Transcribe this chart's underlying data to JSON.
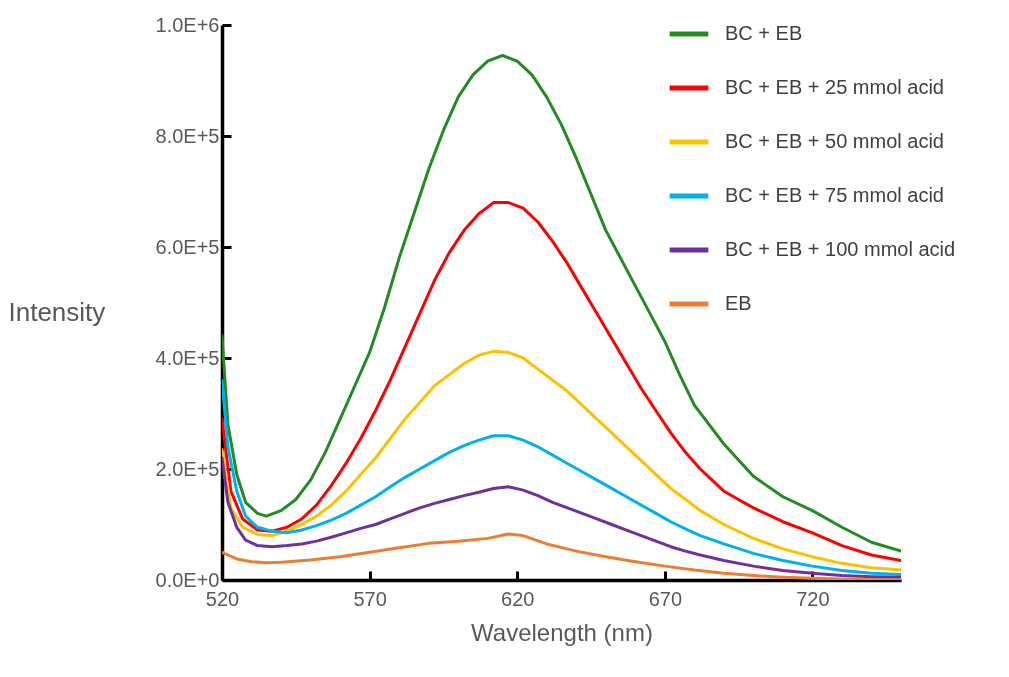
{
  "chart_data": {
    "type": "line",
    "xlabel": "Wavelength (nm)",
    "ylabel": "Intensity",
    "xlim": [
      520,
      750
    ],
    "xticks": [
      520,
      570,
      620,
      670,
      720
    ],
    "ylim": [
      0,
      1000000
    ],
    "yticks": [
      {
        "value": 0,
        "label": "0.0E+0"
      },
      {
        "value": 200000,
        "label": "2.0E+5"
      },
      {
        "value": 400000,
        "label": "4.0E+5"
      },
      {
        "value": 600000,
        "label": "6.0E+5"
      },
      {
        "value": 800000,
        "label": "8.0E+5"
      },
      {
        "value": 1000000,
        "label": "1.0E+6"
      }
    ],
    "grid": false,
    "legend": "top right",
    "series": [
      {
        "name": "BC + EB",
        "color": "#228b22",
        "x": [
          520,
          522,
          525,
          528,
          532,
          535,
          540,
          545,
          550,
          555,
          560,
          565,
          570,
          575,
          580,
          585,
          590,
          595,
          600,
          605,
          610,
          615,
          620,
          625,
          630,
          635,
          640,
          645,
          650,
          655,
          660,
          665,
          670,
          675,
          680,
          690,
          700,
          710,
          720,
          730,
          740,
          750
        ],
        "values": [
          440000,
          280000,
          190000,
          140000,
          120000,
          115000,
          125000,
          145000,
          180000,
          230000,
          290000,
          350000,
          410000,
          490000,
          580000,
          660000,
          740000,
          810000,
          870000,
          910000,
          935000,
          945000,
          935000,
          910000,
          870000,
          820000,
          760000,
          695000,
          630000,
          580000,
          530000,
          480000,
          430000,
          370000,
          315000,
          245000,
          187000,
          150000,
          125000,
          95000,
          68000,
          52000
        ]
      },
      {
        "name": "BC + EB + 25 mmol acid",
        "color": "#ff0000",
        "x": [
          520,
          523,
          527,
          532,
          537,
          542,
          547,
          552,
          557,
          562,
          567,
          572,
          577,
          582,
          587,
          592,
          597,
          602,
          607,
          612,
          617,
          622,
          627,
          632,
          637,
          642,
          647,
          652,
          657,
          662,
          667,
          672,
          677,
          682,
          690,
          700,
          710,
          720,
          730,
          740,
          750
        ],
        "values": [
          290000,
          160000,
          110000,
          90000,
          88000,
          95000,
          110000,
          135000,
          170000,
          210000,
          255000,
          305000,
          360000,
          420000,
          480000,
          540000,
          590000,
          630000,
          660000,
          680000,
          680000,
          670000,
          645000,
          610000,
          570000,
          525000,
          480000,
          435000,
          390000,
          345000,
          305000,
          265000,
          230000,
          200000,
          160000,
          130000,
          105000,
          85000,
          62000,
          45000,
          35000
        ]
      },
      {
        "name": "BC + EB + 50 mmol acid",
        "color": "#ffc000",
        "x": [
          520,
          523,
          527,
          532,
          537,
          542,
          547,
          552,
          557,
          562,
          567,
          572,
          577,
          582,
          587,
          592,
          597,
          602,
          607,
          612,
          617,
          622,
          627,
          632,
          637,
          642,
          647,
          652,
          657,
          662,
          667,
          672,
          677,
          682,
          690,
          700,
          710,
          720,
          730,
          740,
          750
        ],
        "values": [
          235000,
          130000,
          95000,
          82000,
          80000,
          88000,
          100000,
          115000,
          135000,
          160000,
          190000,
          220000,
          255000,
          290000,
          320000,
          350000,
          370000,
          390000,
          405000,
          412000,
          410000,
          400000,
          380000,
          360000,
          340000,
          315000,
          290000,
          265000,
          240000,
          215000,
          190000,
          165000,
          145000,
          125000,
          100000,
          75000,
          56000,
          42000,
          30000,
          22000,
          18000
        ]
      },
      {
        "name": "BC + EB + 75 mmol acid",
        "color": "#00b0f0",
        "x": [
          520,
          522,
          525,
          528,
          532,
          537,
          542,
          547,
          552,
          557,
          562,
          567,
          572,
          577,
          582,
          587,
          592,
          597,
          602,
          607,
          612,
          617,
          622,
          627,
          632,
          637,
          642,
          647,
          652,
          657,
          662,
          667,
          672,
          677,
          682,
          690,
          700,
          710,
          720,
          730,
          740,
          750
        ],
        "values": [
          360000,
          240000,
          160000,
          115000,
          95000,
          88000,
          85000,
          90000,
          98000,
          108000,
          120000,
          135000,
          150000,
          168000,
          185000,
          200000,
          215000,
          230000,
          242000,
          252000,
          260000,
          260000,
          252000,
          240000,
          225000,
          210000,
          195000,
          180000,
          165000,
          150000,
          135000,
          120000,
          105000,
          92000,
          80000,
          65000,
          48000,
          35000,
          25000,
          17000,
          12000,
          10000
        ]
      },
      {
        "name": "BC + EB + 100 mmol acid",
        "color": "#7030a0",
        "x": [
          520,
          522,
          525,
          528,
          532,
          537,
          542,
          547,
          552,
          557,
          562,
          567,
          572,
          577,
          582,
          587,
          592,
          597,
          602,
          607,
          612,
          617,
          622,
          627,
          632,
          637,
          642,
          647,
          652,
          657,
          662,
          667,
          672,
          677,
          682,
          690,
          700,
          710,
          720,
          730,
          740,
          750
        ],
        "values": [
          220000,
          140000,
          95000,
          72000,
          62000,
          60000,
          62000,
          65000,
          70000,
          77000,
          85000,
          93000,
          100000,
          110000,
          120000,
          130000,
          138000,
          145000,
          152000,
          158000,
          165000,
          168000,
          162000,
          152000,
          140000,
          130000,
          120000,
          110000,
          100000,
          90000,
          80000,
          70000,
          60000,
          52000,
          45000,
          35000,
          25000,
          17000,
          12000,
          8000,
          6000,
          5000
        ]
      },
      {
        "name": "EB",
        "color": "#ed7d31",
        "x": [
          520,
          525,
          530,
          535,
          540,
          550,
          560,
          570,
          580,
          590,
          600,
          610,
          617,
          622,
          630,
          640,
          650,
          660,
          670,
          680,
          690,
          700,
          710,
          720,
          730,
          740,
          750
        ],
        "values": [
          50000,
          38000,
          33000,
          31000,
          32000,
          36000,
          42000,
          50000,
          58000,
          66000,
          70000,
          75000,
          83000,
          80000,
          65000,
          52000,
          42000,
          33000,
          25000,
          18000,
          12000,
          8000,
          5000,
          3000,
          2000,
          1000,
          0
        ]
      }
    ]
  }
}
